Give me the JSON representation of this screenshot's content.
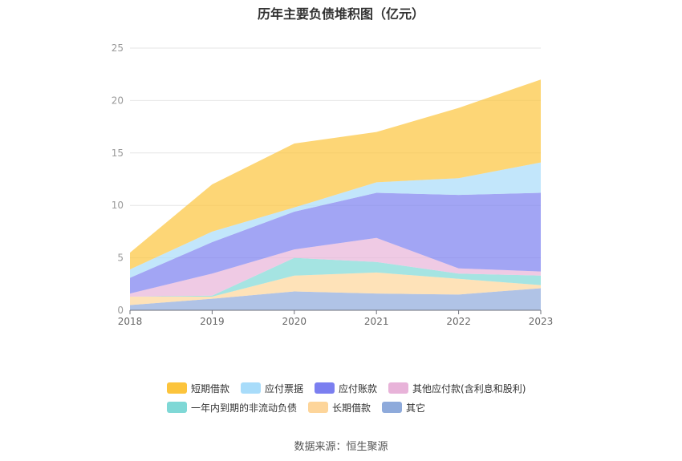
{
  "chart_data": {
    "type": "area",
    "stacked": true,
    "title": "历年主要负债堆积图（亿元）",
    "x": [
      "2018",
      "2019",
      "2020",
      "2021",
      "2022",
      "2023"
    ],
    "ylim": [
      0,
      25
    ],
    "yticks": [
      0,
      5,
      10,
      15,
      20,
      25
    ],
    "grid": true,
    "legend_position": "bottom",
    "series": [
      {
        "name": "其它",
        "color": "#8eaadb",
        "values": [
          0.5,
          1.1,
          1.8,
          1.6,
          1.5,
          2.1
        ]
      },
      {
        "name": "长期借款",
        "color": "#fdd59a",
        "values": [
          0.8,
          0.2,
          1.5,
          2.0,
          1.5,
          0.3
        ]
      },
      {
        "name": "一年内到期的非流动负债",
        "color": "#7fd8d6",
        "values": [
          0.0,
          0.1,
          1.7,
          1.0,
          0.5,
          0.9
        ]
      },
      {
        "name": "其他应付款(含利息和股利)",
        "color": "#e8b3d9",
        "values": [
          0.3,
          2.1,
          0.8,
          2.3,
          0.5,
          0.4
        ]
      },
      {
        "name": "应付账款",
        "color": "#7b7ff0",
        "values": [
          1.5,
          3.0,
          3.6,
          4.3,
          7.0,
          7.5
        ]
      },
      {
        "name": "应付票据",
        "color": "#a8dcfa",
        "values": [
          0.8,
          1.0,
          0.4,
          1.0,
          1.6,
          2.9
        ]
      },
      {
        "name": "短期借款",
        "color": "#fcc43c",
        "values": [
          1.6,
          4.5,
          6.1,
          4.8,
          6.7,
          7.9
        ]
      }
    ]
  },
  "legend": {
    "rows": [
      [
        {
          "label": "短期借款",
          "color": "#fcc43c"
        },
        {
          "label": "应付票据",
          "color": "#a8dcfa"
        },
        {
          "label": "应付账款",
          "color": "#7b7ff0"
        },
        {
          "label": "其他应付款(含利息和股利)",
          "color": "#e8b3d9"
        }
      ],
      [
        {
          "label": "一年内到期的非流动负债",
          "color": "#7fd8d6"
        },
        {
          "label": "长期借款",
          "color": "#fdd59a"
        },
        {
          "label": "其它",
          "color": "#8eaadb"
        }
      ]
    ]
  },
  "source": "数据来源：恒生聚源"
}
